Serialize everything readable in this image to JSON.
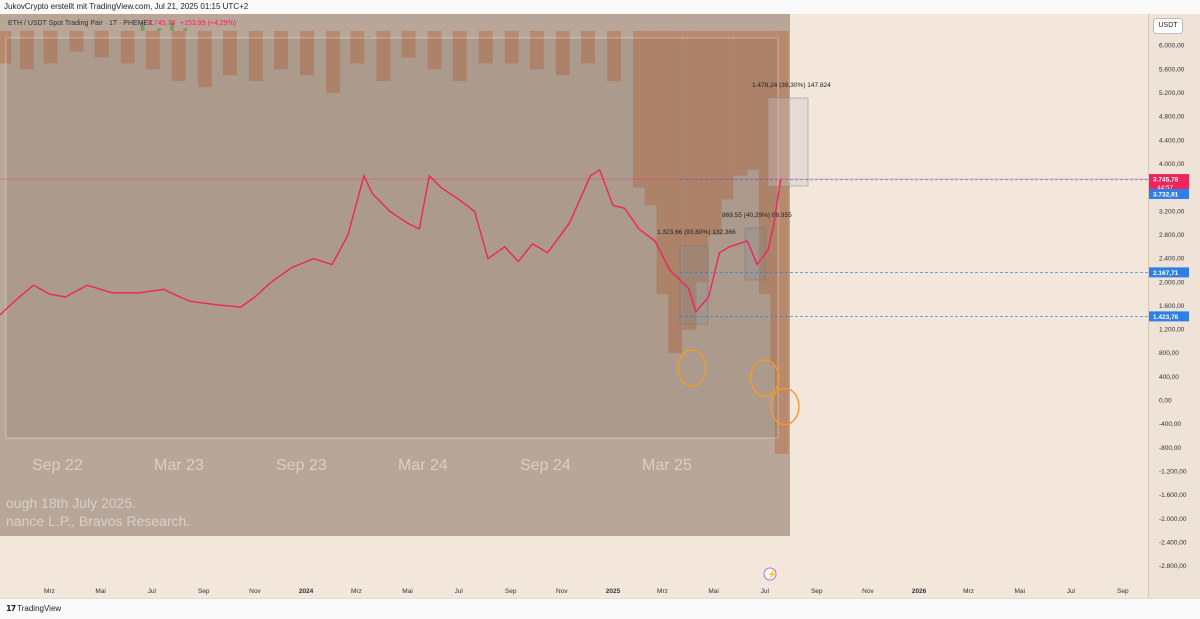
{
  "window_title": "JukovCrypto erstellt mit TradingView.com, Jul 21, 2025 01:15 UTC+2",
  "legend": {
    "symbol": "ETH / USDT Spot Trading Pair · 1T · PHEMEX",
    "price": "3.745,78",
    "change": "+153,99 (+4,29%)"
  },
  "currency_button": "USDT",
  "footer_brand": "TradingView",
  "price_badges": {
    "last": "3.745,78",
    "countdown": "44:57",
    "blue1": "3.732,91",
    "blue2": "2.167,71",
    "blue3": "1.423,76"
  },
  "measurements": [
    {
      "text": "1.323,66 (93,60%) 132.366"
    },
    {
      "text": "869,55 (40,29%) 86.955"
    },
    {
      "text": "1.478,24 (39,30%) 147.824"
    }
  ],
  "overlay": {
    "xlabels": [
      "Sep 22",
      "Mar 23",
      "Sep 23",
      "Mar 24",
      "Sep 24",
      "Mar 25"
    ],
    "caption1": "ough 18th July 2025.",
    "caption2": "nance L.P., Bravos Research."
  },
  "colors": {
    "price_line": "#f0245c",
    "bars": "#f2b08b",
    "green_bars": "#8fd07a",
    "blue_badge": "#2f7fe6",
    "red_badge": "#f0245c",
    "annotation": "#f39a28"
  },
  "chart_data": {
    "type": "line",
    "x_start": "2023-01-01",
    "x_end": "2026-10-01",
    "y_min": -3000,
    "y_max": 6400,
    "yticks": [
      6000,
      5600,
      5200,
      4800,
      4400,
      4000,
      3600,
      3200,
      2800,
      2400,
      2000,
      1600,
      1200,
      800,
      400,
      0,
      -400,
      -800,
      -1200,
      -1600,
      -2000,
      -2400,
      -2800
    ],
    "ytick_labels": [
      "6.000,00",
      "5.600,00",
      "5.200,00",
      "4.800,00",
      "4.400,00",
      "4.000,00",
      "3.600,00",
      "3.200,00",
      "2.800,00",
      "2.400,00",
      "2.000,00",
      "1.600,00",
      "1.200,00",
      "800,00",
      "400,00",
      "0,00",
      "-400,00",
      "-800,00",
      "-1.200,00",
      "-1.600,00",
      "-2.000,00",
      "-2.400,00",
      "-2.800,00"
    ],
    "xticks": [
      {
        "date": "2023-03-01",
        "label": "Mrz"
      },
      {
        "date": "2023-05-01",
        "label": "Mai"
      },
      {
        "date": "2023-07-01",
        "label": "Jul"
      },
      {
        "date": "2023-09-01",
        "label": "Sep"
      },
      {
        "date": "2023-11-01",
        "label": "Nov"
      },
      {
        "date": "2024-01-01",
        "label": "2024"
      },
      {
        "date": "2024-03-01",
        "label": "Mrz"
      },
      {
        "date": "2024-05-01",
        "label": "Mai"
      },
      {
        "date": "2024-07-01",
        "label": "Jul"
      },
      {
        "date": "2024-09-01",
        "label": "Sep"
      },
      {
        "date": "2024-11-01",
        "label": "Nov"
      },
      {
        "date": "2025-01-01",
        "label": "2025"
      },
      {
        "date": "2025-03-01",
        "label": "Mrz"
      },
      {
        "date": "2025-05-01",
        "label": "Mai"
      },
      {
        "date": "2025-07-01",
        "label": "Jul"
      },
      {
        "date": "2025-09-01",
        "label": "Sep"
      },
      {
        "date": "2025-11-01",
        "label": "Nov"
      },
      {
        "date": "2026-01-01",
        "label": "2026"
      },
      {
        "date": "2026-03-01",
        "label": "Mrz"
      },
      {
        "date": "2026-05-01",
        "label": "Mai"
      },
      {
        "date": "2026-07-01",
        "label": "Jul"
      },
      {
        "date": "2026-09-01",
        "label": "Sep"
      }
    ],
    "series": [
      {
        "points": [
          [
            "2023-01-01",
            1450
          ],
          [
            "2023-01-20",
            1700
          ],
          [
            "2023-02-10",
            1950
          ],
          [
            "2023-03-01",
            1800
          ],
          [
            "2023-03-20",
            1750
          ],
          [
            "2023-04-15",
            1950
          ],
          [
            "2023-05-15",
            1820
          ],
          [
            "2023-06-15",
            1820
          ],
          [
            "2023-07-15",
            1880
          ],
          [
            "2023-08-15",
            1680
          ],
          [
            "2023-09-15",
            1620
          ],
          [
            "2023-10-15",
            1580
          ],
          [
            "2023-11-01",
            1750
          ],
          [
            "2023-11-20",
            2000
          ],
          [
            "2023-12-15",
            2250
          ],
          [
            "2024-01-10",
            2400
          ],
          [
            "2024-02-01",
            2300
          ],
          [
            "2024-02-20",
            2800
          ],
          [
            "2024-03-10",
            3800
          ],
          [
            "2024-03-20",
            3500
          ],
          [
            "2024-04-10",
            3200
          ],
          [
            "2024-05-01",
            3000
          ],
          [
            "2024-05-15",
            2900
          ],
          [
            "2024-05-27",
            3800
          ],
          [
            "2024-06-10",
            3600
          ],
          [
            "2024-07-01",
            3400
          ],
          [
            "2024-07-20",
            3200
          ],
          [
            "2024-08-05",
            2400
          ],
          [
            "2024-08-25",
            2600
          ],
          [
            "2024-09-10",
            2350
          ],
          [
            "2024-09-27",
            2650
          ],
          [
            "2024-10-15",
            2500
          ],
          [
            "2024-11-10",
            3000
          ],
          [
            "2024-12-05",
            3800
          ],
          [
            "2024-12-16",
            3900
          ],
          [
            "2025-01-01",
            3300
          ],
          [
            "2025-01-15",
            3250
          ],
          [
            "2025-02-01",
            2900
          ],
          [
            "2025-02-20",
            2700
          ],
          [
            "2025-03-10",
            2200
          ],
          [
            "2025-04-01",
            1900
          ],
          [
            "2025-04-10",
            1500
          ],
          [
            "2025-04-25",
            1750
          ],
          [
            "2025-05-08",
            2500
          ],
          [
            "2025-05-20",
            2600
          ],
          [
            "2025-06-10",
            2700
          ],
          [
            "2025-06-22",
            2300
          ],
          [
            "2025-07-05",
            2550
          ],
          [
            "2025-07-12",
            3000
          ],
          [
            "2025-07-20",
            3745
          ]
        ]
      }
    ],
    "bars": {
      "dates": [
        "2023-01-05",
        "2023-02-01",
        "2023-03-01",
        "2023-04-01",
        "2023-05-01",
        "2023-06-01",
        "2023-07-01",
        "2023-08-01",
        "2023-09-01",
        "2023-10-01",
        "2023-11-01",
        "2023-12-01",
        "2024-01-01",
        "2024-02-01",
        "2024-03-01",
        "2024-04-01",
        "2024-05-01",
        "2024-06-01",
        "2024-07-01",
        "2024-08-01",
        "2024-09-01",
        "2024-10-01",
        "2024-11-01",
        "2024-12-01",
        "2025-01-01",
        "2025-02-01",
        "2025-02-15",
        "2025-03-01",
        "2025-03-15",
        "2025-04-01",
        "2025-04-15",
        "2025-05-01",
        "2025-05-15",
        "2025-06-01",
        "2025-06-15",
        "2025-07-01",
        "2025-07-15",
        "2025-07-20"
      ],
      "bottom": [
        5700,
        5600,
        5700,
        5900,
        5800,
        5700,
        5600,
        5400,
        5300,
        5500,
        5400,
        5600,
        5500,
        5200,
        5700,
        5400,
        5800,
        5600,
        5400,
        5700,
        5700,
        5600,
        5500,
        5700,
        5400,
        3600,
        3300,
        1800,
        800,
        1200,
        2000,
        2800,
        3400,
        3800,
        3900,
        1800,
        600,
        -900
      ]
    },
    "green_bars": {
      "dates": [
        "2023-06-01",
        "2023-06-20",
        "2023-07-10",
        "2023-07-25",
        "2023-08-10",
        "2024-03-15",
        "2024-04-01"
      ],
      "top": [
        6250,
        6400,
        6300,
        6400,
        6300,
        6150,
        6100
      ]
    },
    "hlines": [
      3745,
      3732,
      2167,
      1423
    ],
    "circles": [
      {
        "date": "2025-04-05",
        "value": 550
      },
      {
        "date": "2025-07-01",
        "value": 380
      },
      {
        "date": "2025-07-25",
        "value": -100
      }
    ]
  }
}
